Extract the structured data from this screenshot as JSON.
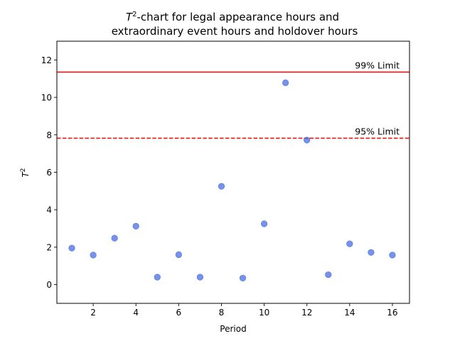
{
  "chart_data": {
    "type": "scatter",
    "title_line1_prefix": "T",
    "title_line1_sup": "2",
    "title_line1_suffix": "-chart for legal appearance hours and",
    "title_line2": "extraordinary event hours and holdover hours",
    "xlabel": "Period",
    "ylabel_base": "T",
    "ylabel_sup": "2",
    "xlim": [
      0.3,
      16.8
    ],
    "ylim": [
      -1,
      13
    ],
    "xticks": [
      2,
      4,
      6,
      8,
      10,
      12,
      14,
      16
    ],
    "yticks": [
      0,
      2,
      4,
      6,
      8,
      10,
      12
    ],
    "grid": false,
    "point_color": "#4169e1",
    "x": [
      1,
      2,
      3,
      4,
      5,
      6,
      7,
      8,
      9,
      10,
      11,
      12,
      13,
      14,
      15,
      16
    ],
    "y": [
      1.95,
      1.58,
      2.48,
      3.12,
      0.4,
      1.6,
      0.4,
      5.25,
      0.35,
      3.25,
      10.78,
      7.72,
      0.53,
      2.18,
      1.72,
      1.58
    ],
    "limits": [
      {
        "label": "99% Limit",
        "value": 11.35,
        "color": "#ff0000",
        "style": "solid"
      },
      {
        "label": "95% Limit",
        "value": 7.82,
        "color": "#ff0000",
        "style": "dashed"
      }
    ]
  }
}
